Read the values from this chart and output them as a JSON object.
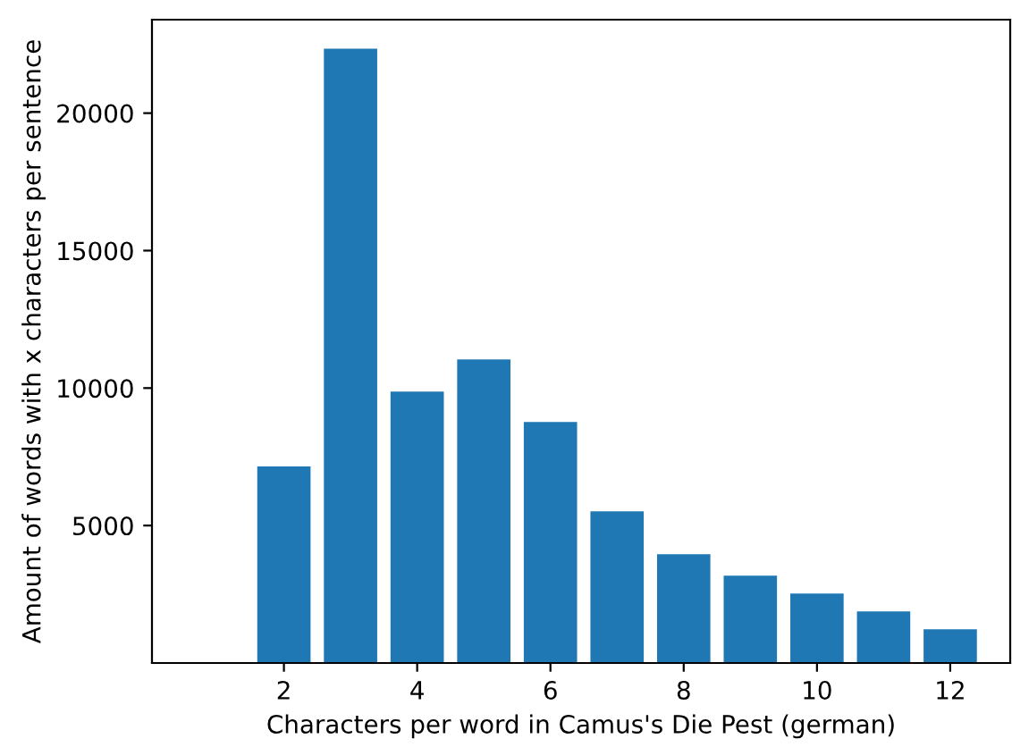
{
  "chart_data": {
    "type": "bar",
    "xlabel": "Characters per word in Camus's Die Pest (german)",
    "ylabel": "Amount of words with x characters per sentence",
    "x": [
      2,
      3,
      4,
      5,
      6,
      7,
      8,
      9,
      10,
      11,
      12
    ],
    "values": [
      7150,
      22340,
      9870,
      11040,
      8770,
      5520,
      3960,
      3180,
      2530,
      1880,
      1230
    ],
    "color": "#1f77b4",
    "xlim": [
      0.02,
      12.9
    ],
    "ylim": [
      0,
      23400
    ],
    "xticks": [
      2,
      4,
      6,
      8,
      10,
      12
    ],
    "yticks": [
      5000,
      10000,
      15000,
      20000
    ],
    "grid": false
  }
}
